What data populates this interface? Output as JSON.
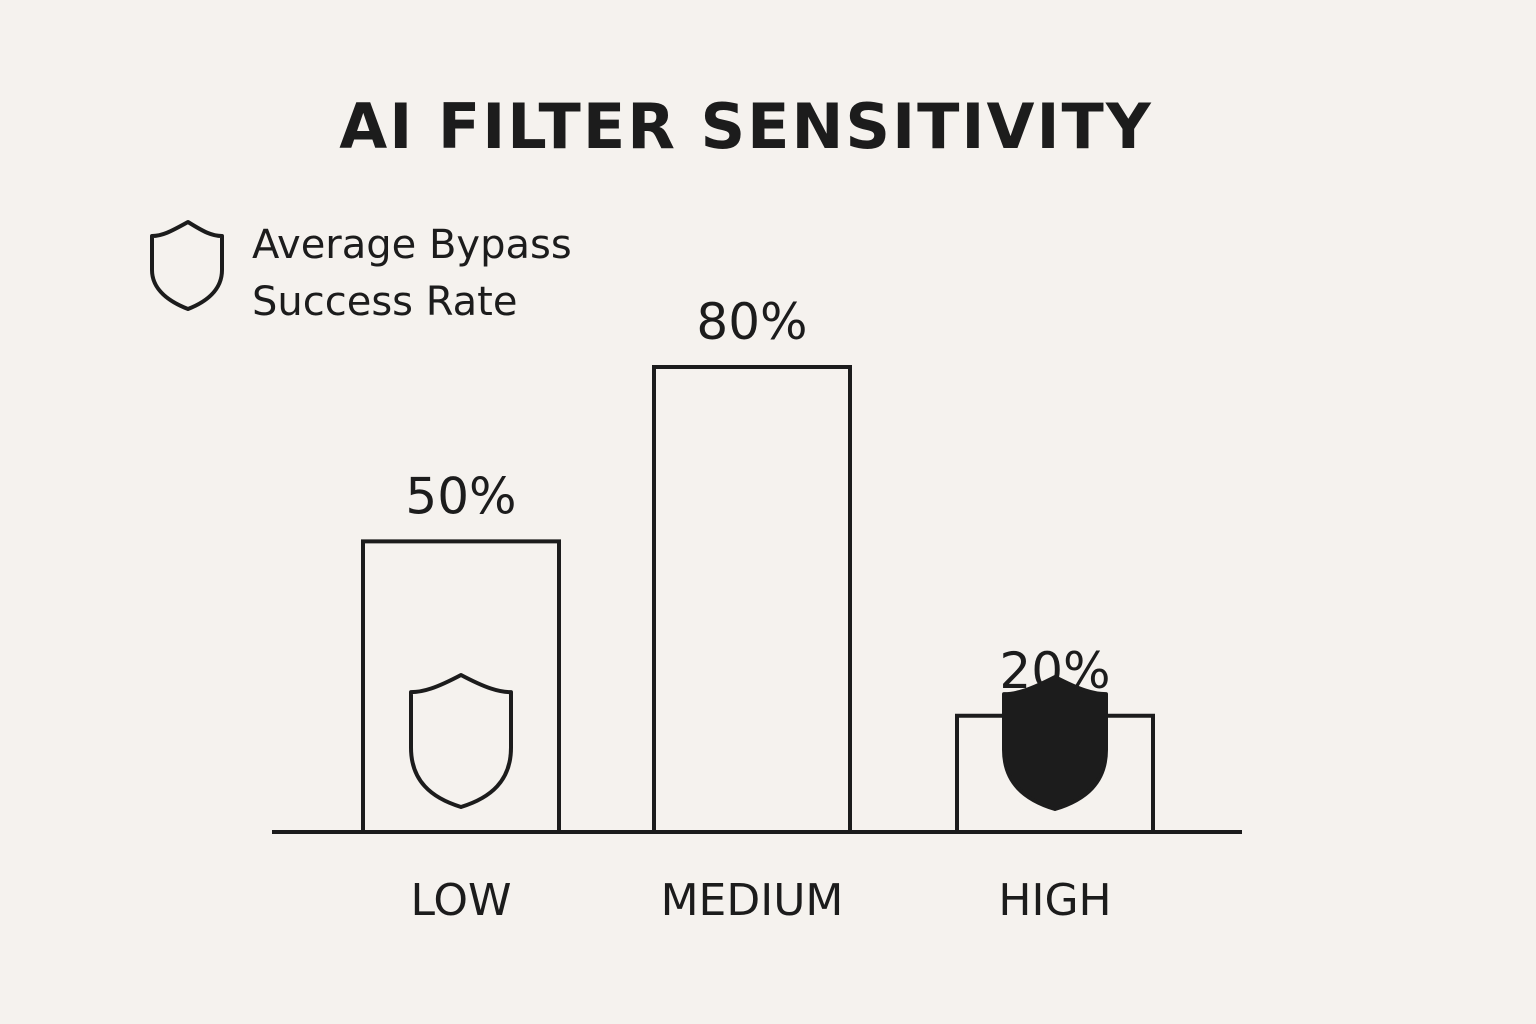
{
  "chart_data": {
    "type": "bar",
    "title": "AI FILTER SENSITIVITY",
    "legend": {
      "icon": "shield-outline-icon",
      "lines": [
        "Average Bypass",
        "Success Rate"
      ],
      "placement": "top-left"
    },
    "categories": [
      "LOW",
      "MEDIUM",
      "HIGH"
    ],
    "series": [
      {
        "name": "Average Bypass Success Rate",
        "values": [
          50,
          80,
          20
        ]
      }
    ],
    "value_labels": [
      "50%",
      "80%",
      "20%"
    ],
    "bar_icons": [
      "shield-outline-icon",
      "",
      "shield-filled-icon"
    ],
    "ylim": [
      0,
      100
    ],
    "xlabel": "",
    "ylabel": "",
    "grid": false,
    "colors": {
      "ink": "#1c1c1c",
      "background": "#f5f2ee"
    }
  }
}
